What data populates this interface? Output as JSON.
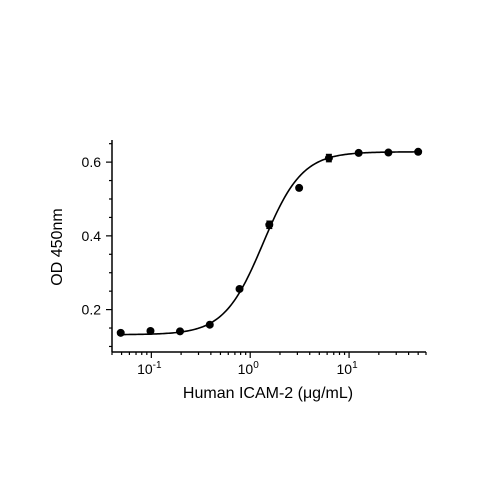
{
  "chart_data": {
    "type": "scatter",
    "xlabel": "Human ICAM-2 (μg/mL)",
    "ylabel": "OD 450nm",
    "x_scale": "log",
    "xlim": [
      0.04,
      60
    ],
    "ylim": [
      0.085,
      0.66
    ],
    "x_ticks": [
      {
        "label": "10",
        "exp": "-1",
        "value": 0.1
      },
      {
        "label": "10",
        "exp": "0",
        "value": 1
      },
      {
        "label": "10",
        "exp": "1",
        "value": 10
      }
    ],
    "y_ticks": [
      {
        "label": "0.2",
        "value": 0.2
      },
      {
        "label": "0.4",
        "value": 0.4
      },
      {
        "label": "0.6",
        "value": 0.6
      }
    ],
    "points": [
      {
        "x": 0.049,
        "y": 0.137,
        "err": 0.003
      },
      {
        "x": 0.098,
        "y": 0.142,
        "err": 0.003
      },
      {
        "x": 0.195,
        "y": 0.141,
        "err": 0.003
      },
      {
        "x": 0.39,
        "y": 0.159,
        "err": 0.003
      },
      {
        "x": 0.78,
        "y": 0.256,
        "err": 0.004
      },
      {
        "x": 1.56,
        "y": 0.43,
        "err": 0.01
      },
      {
        "x": 3.125,
        "y": 0.53,
        "err": 0.005
      },
      {
        "x": 6.25,
        "y": 0.611,
        "err": 0.01
      },
      {
        "x": 12.5,
        "y": 0.625,
        "err": 0.004
      },
      {
        "x": 25,
        "y": 0.626,
        "err": 0.004
      },
      {
        "x": 50,
        "y": 0.628,
        "err": 0.004
      }
    ],
    "fit": {
      "model": "4PL",
      "bottom": 0.132,
      "top": 0.628,
      "ec50": 1.35,
      "hill": 2.2
    },
    "grid": false,
    "legend": "none"
  }
}
